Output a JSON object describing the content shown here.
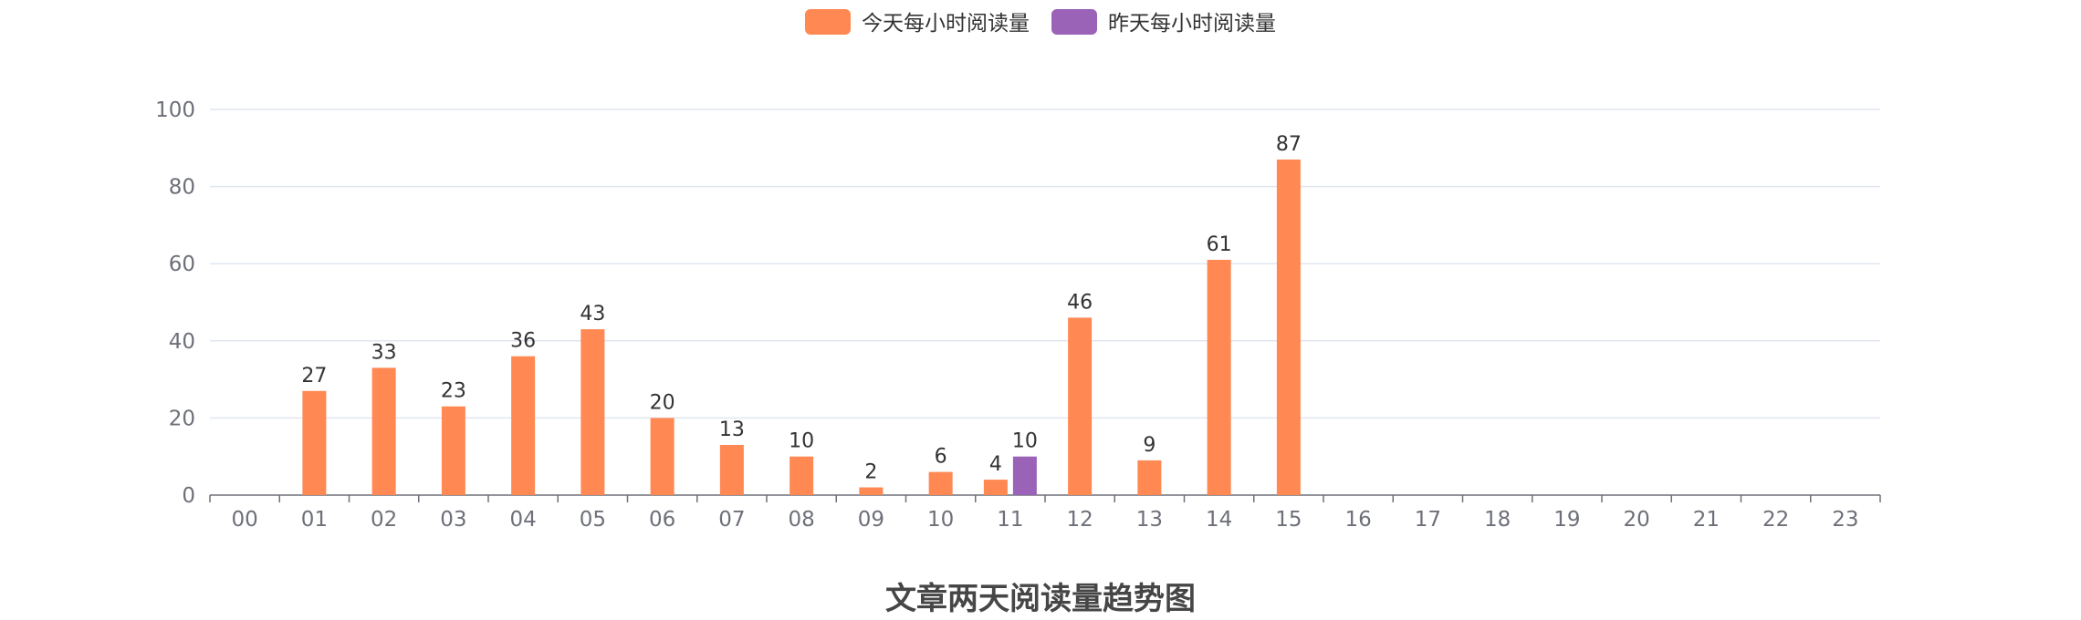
{
  "chart_data": {
    "type": "bar",
    "title": "文章两天阅读量趋势图",
    "xlabel": "",
    "ylabel": "",
    "ylim": [
      0,
      100
    ],
    "yticks": [
      0,
      20,
      40,
      60,
      80,
      100
    ],
    "grid": true,
    "legend_position": "top-center",
    "categories": [
      "00",
      "01",
      "02",
      "03",
      "04",
      "05",
      "06",
      "07",
      "08",
      "09",
      "10",
      "11",
      "12",
      "13",
      "14",
      "15",
      "16",
      "17",
      "18",
      "19",
      "20",
      "21",
      "22",
      "23"
    ],
    "series": [
      {
        "name": "今天每小时阅读量",
        "color": "#ff8853",
        "values": [
          0,
          27,
          33,
          23,
          36,
          43,
          20,
          13,
          10,
          2,
          6,
          4,
          46,
          9,
          61,
          87,
          null,
          null,
          null,
          null,
          null,
          null,
          null,
          null
        ]
      },
      {
        "name": "昨天每小时阅读量",
        "color": "#9b63b8",
        "values": [
          null,
          null,
          null,
          null,
          null,
          null,
          null,
          null,
          null,
          null,
          null,
          10,
          null,
          null,
          null,
          null,
          null,
          null,
          null,
          null,
          null,
          null,
          null,
          null
        ]
      }
    ]
  }
}
